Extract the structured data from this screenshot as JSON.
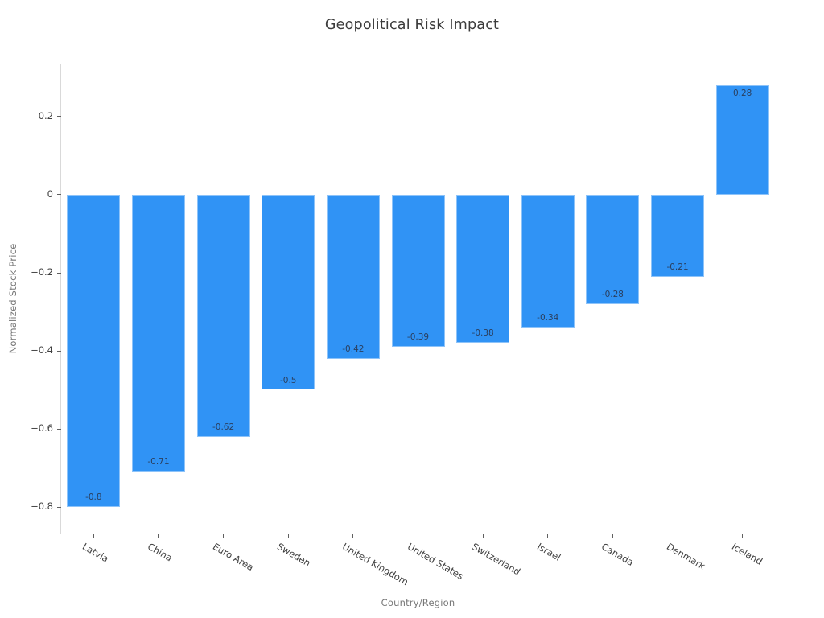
{
  "chart_data": {
    "type": "bar",
    "title": "Geopolitical Risk Impact",
    "xlabel": "Country/Region",
    "ylabel": "Normalized Stock Price",
    "categories": [
      "Latvia",
      "China",
      "Euro Area",
      "Sweden",
      "United Kingdom",
      "United States",
      "Switzerland",
      "Israel",
      "Canada",
      "Denmark",
      "Iceland"
    ],
    "values": [
      -0.8,
      -0.71,
      -0.62,
      -0.5,
      -0.42,
      -0.39,
      -0.38,
      -0.34,
      -0.28,
      -0.21,
      0.28
    ],
    "bar_labels": [
      "-0.8",
      "-0.71",
      "-0.62",
      "-0.5",
      "-0.42",
      "-0.39",
      "-0.38",
      "-0.34",
      "-0.28",
      "-0.21",
      "0.28"
    ],
    "y_ticks": [
      0.2,
      0,
      -0.2,
      -0.4,
      -0.6,
      -0.8
    ],
    "y_tick_labels": [
      "0.2",
      "0",
      "−0.2",
      "−0.4",
      "−0.6",
      "−0.8"
    ],
    "ylim": [
      -0.868,
      0.334
    ],
    "bar_color": "#3093F5",
    "value_label_color": "#2a3f5f",
    "axis_line_color": "#d9d9d9",
    "tick_color": "#606060",
    "grid": false,
    "legend": "none"
  }
}
